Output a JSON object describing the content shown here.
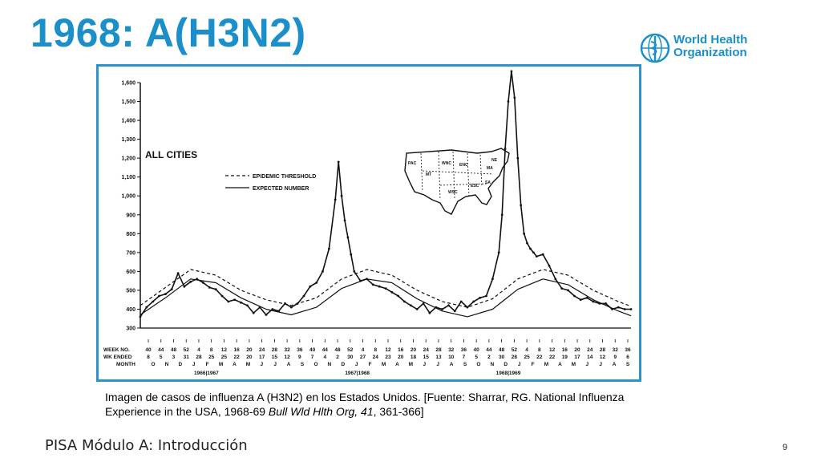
{
  "slide": {
    "title": "1968: A(H3N2)",
    "footer": "PISA Módulo A: Introducción",
    "page_number": "9",
    "title_color": "#1a8fc9",
    "frame_color": "#2d93cf"
  },
  "logo": {
    "icon": "who-emblem-icon",
    "line1": "World Health",
    "line2": "Organization"
  },
  "caption": {
    "part1": "Imagen de casos de influenza A (H3N2) en los Estados Unidos. [Fuente: Sharrar, RG. National Influenza Experience in the USA, 1968-69 ",
    "journal": "Bull Wld Hlth Org,",
    "volume": " 41",
    "part2": ", 361-366]"
  },
  "chart_data": {
    "type": "line",
    "title": "ALL CITIES",
    "ylim": [
      300,
      1600
    ],
    "yticks": [
      "1,600",
      "1,500",
      "1,400",
      "1,300",
      "1,200",
      "1,100",
      "1,000",
      "900",
      "800",
      "700",
      "600",
      "500",
      "400",
      "300"
    ],
    "ytick_values": [
      1600,
      1500,
      1400,
      1300,
      1200,
      1100,
      1000,
      900,
      800,
      700,
      600,
      500,
      400,
      300
    ],
    "week_row_label": "WEEK NO.",
    "wk_row_label": "WK ENDED",
    "month_row_label": "MONTH",
    "week_labels": [
      "40",
      "44",
      "48",
      "52",
      "4",
      "8",
      "12",
      "16",
      "20",
      "24",
      "28",
      "32",
      "36",
      "40",
      "44",
      "48",
      "52",
      "4",
      "8",
      "12",
      "16",
      "20",
      "24",
      "28",
      "32",
      "36",
      "40",
      "44",
      "48",
      "52",
      "4",
      "8",
      "12",
      "16",
      "20",
      "24",
      "28",
      "32",
      "36"
    ],
    "wk_ended_labels": [
      "8",
      "5",
      "3",
      "31",
      "28",
      "25",
      "25",
      "22",
      "20",
      "17",
      "15",
      "12",
      "9",
      "7",
      "4",
      "2",
      "30",
      "27",
      "24",
      "23",
      "20",
      "18",
      "15",
      "13",
      "10",
      "7",
      "5",
      "2",
      "30",
      "28",
      "25",
      "22",
      "22",
      "19",
      "17",
      "14",
      "12",
      "9",
      "6"
    ],
    "month_labels": [
      "O",
      "N",
      "D",
      "J",
      "F",
      "M",
      "A",
      "M",
      "J",
      "J",
      "A",
      "S",
      "O",
      "N",
      "D",
      "J",
      "F",
      "M",
      "A",
      "M",
      "J",
      "J",
      "A",
      "S",
      "O",
      "N",
      "D",
      "J",
      "F",
      "M",
      "A",
      "M",
      "J",
      "J",
      "A",
      "S"
    ],
    "season_labels": [
      "1966|1967",
      "1967|1968",
      "1968|1969"
    ],
    "season_label_x": [
      21,
      69,
      117
    ],
    "legend": [
      {
        "name": "EPIDEMIC THRESHOLD",
        "style": "dashed"
      },
      {
        "name": "EXPECTED NUMBER",
        "style": "solid"
      }
    ],
    "map_labels": [
      "PAC",
      "MT",
      "WNC",
      "ENC",
      "NE",
      "MA",
      "SA",
      "ESC",
      "WSC"
    ],
    "series": [
      {
        "name": "EPIDEMIC THRESHOLD",
        "style": "dashed",
        "x": [
          0,
          8,
          16,
          24,
          32,
          40,
          48,
          56,
          64,
          72,
          80,
          88,
          96,
          104,
          112,
          120,
          128,
          136,
          144,
          152,
          156
        ],
        "y": [
          420,
          515,
          610,
          580,
          500,
          450,
          420,
          460,
          560,
          610,
          580,
          500,
          440,
          410,
          455,
          560,
          610,
          580,
          500,
          440,
          415
        ]
      },
      {
        "name": "EXPECTED NUMBER",
        "style": "solid",
        "x": [
          0,
          8,
          16,
          24,
          32,
          40,
          48,
          56,
          64,
          72,
          80,
          88,
          96,
          104,
          112,
          120,
          128,
          136,
          144,
          152,
          156
        ],
        "y": [
          370,
          460,
          560,
          540,
          460,
          400,
          370,
          410,
          510,
          560,
          540,
          455,
          390,
          360,
          400,
          505,
          560,
          530,
          450,
          390,
          365
        ]
      },
      {
        "name": "OBSERVED",
        "style": "solid",
        "x": [
          0,
          2,
          4,
          6,
          8,
          10,
          12,
          14,
          16,
          18,
          20,
          22,
          24,
          26,
          28,
          30,
          32,
          34,
          36,
          38,
          40,
          42,
          44,
          46,
          48,
          50,
          52,
          54,
          56,
          58,
          60,
          62,
          63,
          64,
          65,
          66,
          67,
          68,
          70,
          72,
          74,
          76,
          78,
          80,
          82,
          84,
          86,
          88,
          90,
          92,
          94,
          96,
          98,
          100,
          102,
          104,
          106,
          108,
          110,
          112,
          114,
          115,
          116,
          117,
          118,
          119,
          120,
          121,
          122,
          123,
          124,
          125,
          126,
          128,
          130,
          132,
          134,
          136,
          138,
          140,
          142,
          144,
          146,
          148,
          150,
          152,
          154,
          156
        ],
        "y": [
          360,
          410,
          440,
          470,
          480,
          505,
          590,
          520,
          545,
          560,
          540,
          515,
          505,
          470,
          440,
          450,
          435,
          420,
          380,
          410,
          370,
          400,
          390,
          430,
          410,
          430,
          470,
          520,
          540,
          600,
          720,
          980,
          1180,
          1000,
          870,
          780,
          690,
          600,
          550,
          560,
          530,
          520,
          510,
          490,
          470,
          440,
          420,
          400,
          430,
          380,
          410,
          400,
          420,
          390,
          440,
          410,
          440,
          460,
          470,
          560,
          700,
          900,
          1250,
          1500,
          1660,
          1520,
          1200,
          950,
          800,
          750,
          720,
          700,
          680,
          690,
          630,
          560,
          510,
          500,
          470,
          450,
          460,
          440,
          430,
          430,
          400,
          410,
          400,
          400
        ]
      }
    ]
  }
}
